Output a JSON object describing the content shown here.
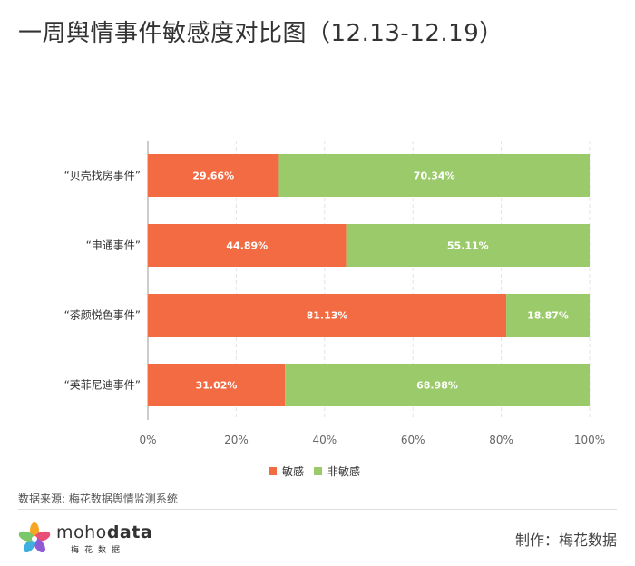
{
  "title": "一周舆情事件敏感度对比图（12.13-12.19）",
  "source": "数据来源: 梅花数据舆情监测系统",
  "credit": "制作：梅花数据",
  "brand": {
    "name_part1": "moho",
    "name_part2": "data",
    "sub": "梅花数据"
  },
  "colors": {
    "sensitive": "#f26b43",
    "non_sensitive": "#9bca6a"
  },
  "chart_data": {
    "type": "bar",
    "orientation": "horizontal",
    "stacked": true,
    "categories": [
      "“贝壳找房事件”",
      "“申通事件”",
      "“茶颜悦色事件”",
      "“英菲尼迪事件”"
    ],
    "series": [
      {
        "name": "敏感",
        "values": [
          29.66,
          44.89,
          81.13,
          31.02
        ],
        "labels": [
          "29.66%",
          "44.89%",
          "81.13%",
          "31.02%"
        ]
      },
      {
        "name": "非敏感",
        "values": [
          70.34,
          55.11,
          18.87,
          68.98
        ],
        "labels": [
          "70.34%",
          "55.11%",
          "18.87%",
          "68.98%"
        ]
      }
    ],
    "xlim": [
      0,
      100
    ],
    "xticks": [
      0,
      20,
      40,
      60,
      80,
      100
    ],
    "xtick_labels": [
      "0%",
      "20%",
      "40%",
      "60%",
      "80%",
      "100%"
    ],
    "grid": true,
    "legend_position": "bottom"
  }
}
